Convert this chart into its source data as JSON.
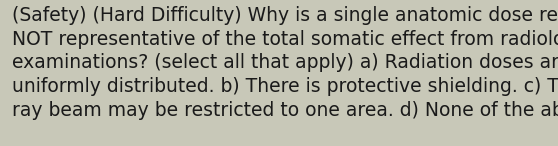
{
  "background_color": "#c8c8b8",
  "line1": "(Safety) (Hard Difficulty) Why is a single anatomic dose reading",
  "line2": "NOT representative of the total somatic effect from radiological",
  "line3": "examinations? (select all that apply) a) Radiation doses are not",
  "line4": "uniformly distributed. b) There is protective shielding. c) The X-",
  "line5": "ray beam may be restricted to one area. d) None of the above.",
  "text_color": "#1a1a1a",
  "font_size": 13.5,
  "fig_width": 5.58,
  "fig_height": 1.46,
  "dpi": 100
}
